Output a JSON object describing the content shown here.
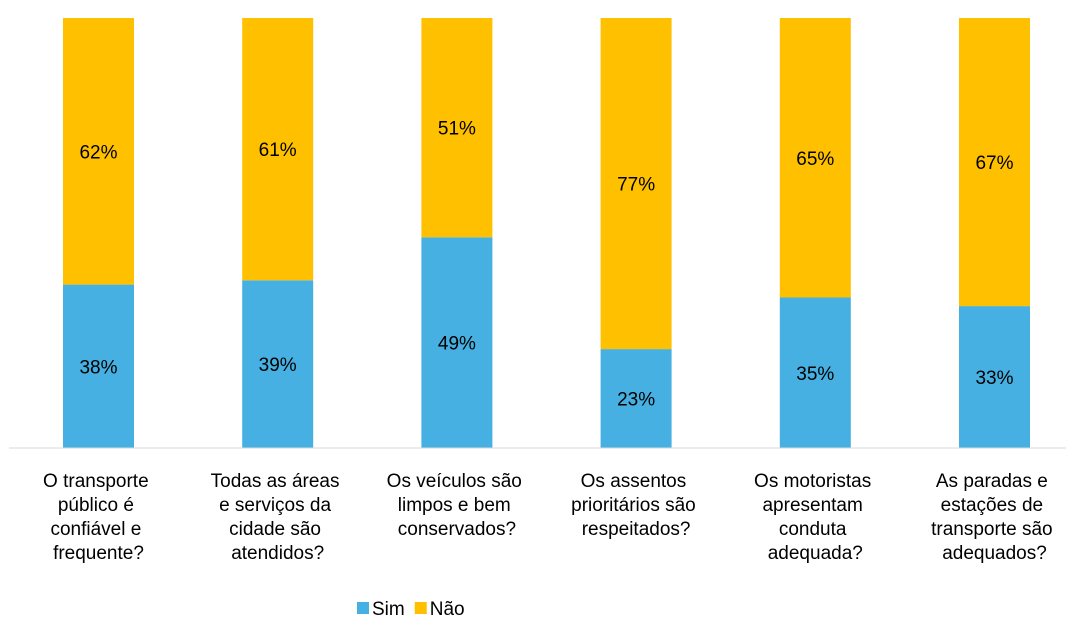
{
  "chart_data": {
    "type": "stacked_bar",
    "categories": [
      "O transporte\npúblico é\nconfiável e\nfrequente?",
      "Todas as áreas\ne serviços da\ncidade são\natendidos?",
      "Os veículos são\nlimpos e bem\nconservados?",
      "Os assentos\nprioritários são\nrespeitados?",
      "Os motoristas\napresentam\nconduta\nadequada?",
      "As paradas e\nestações de\ntransporte são\nadequados?"
    ],
    "series": [
      {
        "name": "Sim",
        "color": "#45b0e1",
        "values": [
          38,
          39,
          49,
          23,
          35,
          33
        ],
        "value_labels": [
          "38%",
          "39%",
          "49%",
          "23%",
          "35%",
          "33%"
        ]
      },
      {
        "name": "Não",
        "color": "#ffc000",
        "values": [
          62,
          61,
          51,
          77,
          65,
          67
        ],
        "value_labels": [
          "62%",
          "61%",
          "51%",
          "77%",
          "65%",
          "67%"
        ]
      }
    ],
    "ylim": [
      0,
      100
    ],
    "legend": "bottom"
  }
}
